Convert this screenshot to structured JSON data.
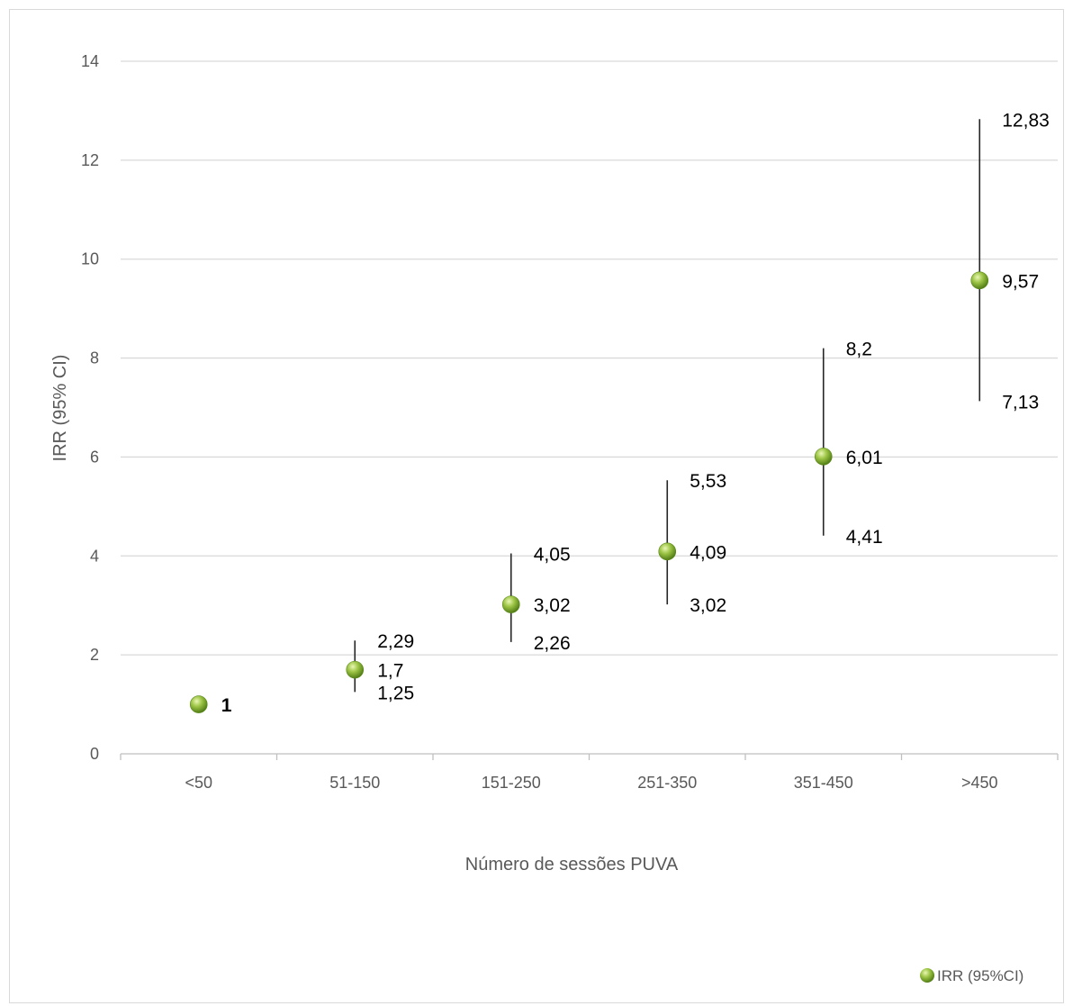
{
  "chart_data": {
    "type": "scatter",
    "title": "",
    "xlabel": "Número de sessões PUVA",
    "ylabel": "IRR (95% CI)",
    "ylim": [
      0,
      14
    ],
    "yticks": [
      0,
      2,
      4,
      6,
      8,
      10,
      12,
      14
    ],
    "ytick_labels": [
      "0",
      "2",
      "4",
      "6",
      "8",
      "10",
      "12",
      "14"
    ],
    "categories": [
      "<50",
      "51-150",
      "151-250",
      "251-350",
      "351-450",
      ">450"
    ],
    "grid": "horizontal",
    "legend_position": "bottom-right",
    "series": [
      {
        "name": "IRR (95%CI)",
        "color": "#8cb43c",
        "values": [
          1,
          1.7,
          3.02,
          4.09,
          6.01,
          9.57
        ],
        "labels": [
          "1",
          "1,7",
          "3,02",
          "4,09",
          "6,01",
          "9,57"
        ],
        "ci_low": [
          null,
          1.25,
          2.26,
          3.02,
          4.41,
          7.13
        ],
        "ci_low_labels": [
          "",
          "1,25",
          "2,26",
          "3,02",
          "4,41",
          "7,13"
        ],
        "ci_high": [
          null,
          2.29,
          4.05,
          5.53,
          8.2,
          12.83
        ],
        "ci_high_labels": [
          "",
          "2,29",
          "4,05",
          "5,53",
          "8,2",
          "12,83"
        ]
      }
    ]
  }
}
